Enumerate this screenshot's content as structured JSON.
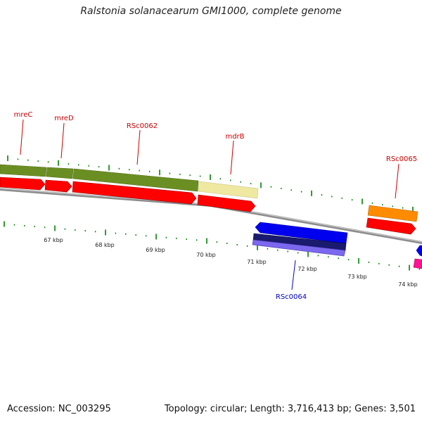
{
  "title": "Ralstonia solanacearum GMI1000, complete genome",
  "footer": {
    "accession": "Accession: NC_003295",
    "stats": "Topology: circular; Length: 3,716,413 bp; Genes: 3,501"
  },
  "colors": {
    "forward_gene": "#6b8e23",
    "cds": "#ff0000",
    "mdrB_gene": "#efe8a0",
    "RSc0065_gene": "#ff8c00",
    "reverse_gene": "#0000ee",
    "reverse_cds": "#7b68ee",
    "RSc0066_cds": "#ff1493",
    "backbone": "#8c8c8c",
    "tick": "#008000",
    "forward_label": "#cc0000",
    "reverse_label": "#0000cc"
  },
  "gene_labels": [
    {
      "name": "mreC",
      "strand": "forward"
    },
    {
      "name": "mreD",
      "strand": "forward"
    },
    {
      "name": "RSc0062",
      "strand": "forward"
    },
    {
      "name": "mdrB",
      "strand": "forward"
    },
    {
      "name": "RSc0065",
      "strand": "forward"
    },
    {
      "name": "RSc0064",
      "strand": "reverse"
    }
  ],
  "scale": {
    "unit": "kbp",
    "labels": [
      "67 kbp",
      "68 kbp",
      "69 kbp",
      "70 kbp",
      "71 kbp",
      "72 kbp",
      "73 kbp",
      "74 kbp"
    ]
  }
}
